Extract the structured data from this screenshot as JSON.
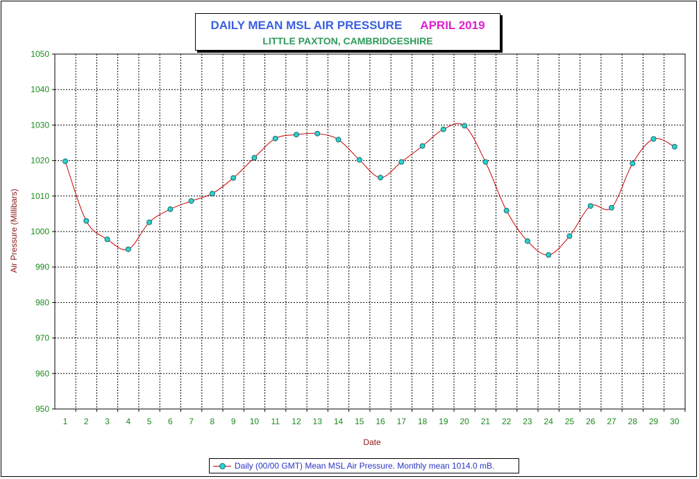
{
  "title": {
    "main": "DAILY MEAN MSL AIR PRESSURE",
    "month": "APRIL 2019",
    "location": "LITTLE PAXTON, CAMBRIDGESHIRE"
  },
  "colors": {
    "title_main": "#3a5fe0",
    "title_month": "#e020d0",
    "location": "#2e9a5a",
    "tick_labels": "#1a8a1a",
    "axis_titles": "#8b1a1a",
    "line": "#cc0000",
    "marker_fill": "#2fd0d0",
    "grid": "#000000",
    "legend_text": "#2a35c0"
  },
  "legend": {
    "label": "Daily (00/00 GMT) Mean MSL Air Pressure. Monthly mean 1014.0 mB."
  },
  "chart_data": {
    "type": "line",
    "xlabel": "Date",
    "ylabel": "Air Pressure (Millibars)",
    "ylim": [
      950,
      1050
    ],
    "y_ticks": [
      950,
      960,
      970,
      980,
      990,
      1000,
      1010,
      1020,
      1030,
      1040,
      1050
    ],
    "categories": [
      "1",
      "2",
      "3",
      "4",
      "5",
      "6",
      "7",
      "8",
      "9",
      "10",
      "11",
      "12",
      "13",
      "14",
      "15",
      "16",
      "17",
      "18",
      "19",
      "20",
      "21",
      "22",
      "23",
      "24",
      "25",
      "26",
      "27",
      "28",
      "29",
      "30"
    ],
    "grid": true,
    "legend_position": "bottom",
    "series": [
      {
        "name": "Daily (00/00 GMT) Mean MSL Air Pressure. Monthly mean 1014.0 mB.",
        "values": [
          1019.8,
          1003.0,
          997.8,
          995.0,
          1002.6,
          1006.3,
          1008.6,
          1010.7,
          1015.1,
          1020.8,
          1026.2,
          1027.3,
          1027.6,
          1025.9,
          1020.2,
          1015.2,
          1019.6,
          1024.1,
          1028.8,
          1029.8,
          1019.6,
          1005.9,
          997.3,
          993.4,
          998.7,
          1007.2,
          1006.7,
          1019.2,
          1026.1,
          1023.9
        ]
      }
    ]
  }
}
